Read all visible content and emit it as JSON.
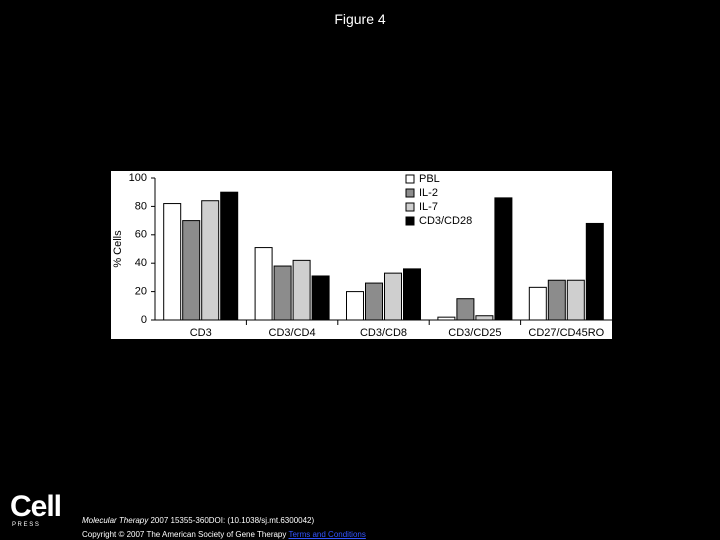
{
  "header": {
    "title": "Figure 4"
  },
  "chart_data": {
    "type": "bar",
    "ylabel": "% Cells",
    "categories": [
      "CD3",
      "CD3/CD4",
      "CD3/CD8",
      "CD3/CD25",
      "CD27/CD45RO"
    ],
    "series": [
      {
        "name": "PBL",
        "color": "#ffffff",
        "values": [
          82,
          51,
          20,
          2,
          23
        ]
      },
      {
        "name": "IL-2",
        "color": "#8c8c8c",
        "values": [
          70,
          38,
          26,
          15,
          28
        ]
      },
      {
        "name": "IL-7",
        "color": "#cfcfcf",
        "values": [
          84,
          42,
          33,
          3,
          28
        ]
      },
      {
        "name": "CD3/CD28",
        "color": "#000000",
        "values": [
          90,
          31,
          36,
          86,
          68
        ]
      }
    ],
    "ylim": [
      0,
      100
    ],
    "yticks": [
      0,
      20,
      40,
      60,
      80,
      100
    ],
    "grid": false,
    "legend": "top-right"
  },
  "footer": {
    "logo": "Cell",
    "logo_sub": "P R E S S",
    "journal": "Molecular Therapy",
    "citation": "2007 15355-360DOI: (10.1038/sj.mt.6300042)",
    "copyright": "Copyright © 2007 The American Society of Gene Therapy",
    "link": "Terms and Conditions"
  }
}
